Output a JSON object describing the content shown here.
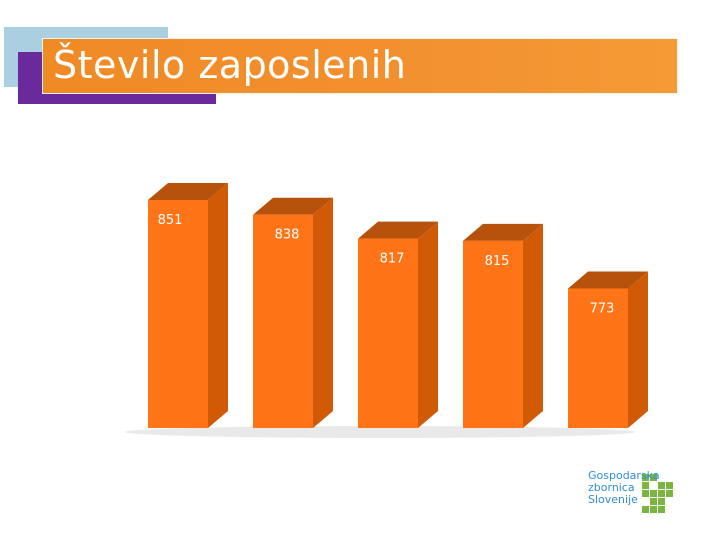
{
  "header": {
    "title": "Število zaposlenih"
  },
  "logo": {
    "text": "Gospodarska zbornica Slovenije"
  },
  "colors": {
    "bar_front": "#ff7417",
    "bar_side": "#d05a05",
    "bar_top": "#b6520c",
    "title_bar": "#f29130",
    "deco_purple": "#6b2a9c",
    "deco_blue": "#a9cfe0",
    "logo_blue": "#2f8fd6",
    "logo_green": "#7ab542"
  },
  "chart_data": {
    "type": "bar",
    "title": "",
    "xlabel": "",
    "ylabel": "",
    "style": "3d-column",
    "data_labels": "inside-top",
    "grid": false,
    "legend": "none",
    "categories": [
      "",
      "",
      "",
      "",
      ""
    ],
    "values": [
      851,
      838,
      817,
      815,
      773
    ],
    "ylim": [
      650,
      880
    ]
  }
}
